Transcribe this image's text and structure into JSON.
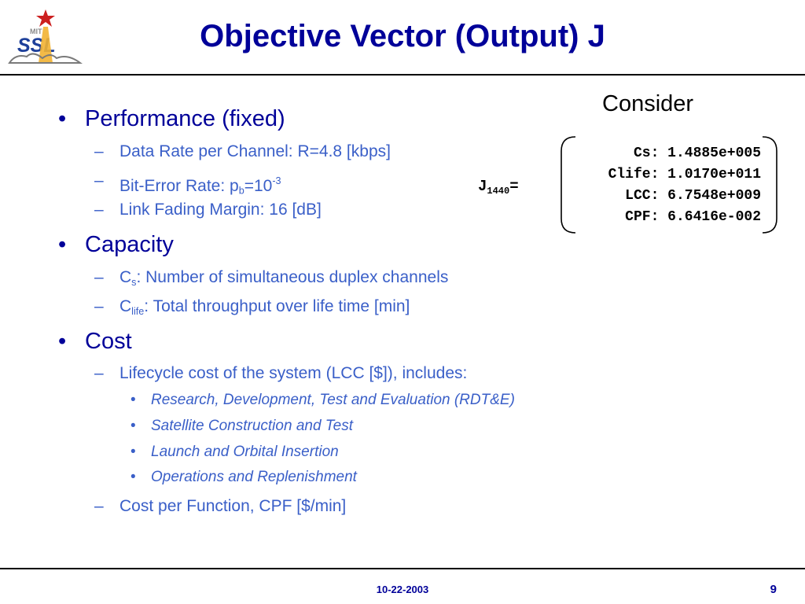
{
  "logo": {
    "text": "SSL",
    "small_text": "MIT"
  },
  "title": "Objective Vector (Output) J",
  "bullets": {
    "performance": {
      "label": "Performance (fixed)",
      "items": [
        {
          "prefix": "Data Rate per Channel: R=4.8 [kbps]"
        },
        {
          "prefix": "Bit-Error Rate: p",
          "sub": "b",
          "mid": "=10",
          "sup": "-3"
        },
        {
          "prefix": "Link Fading Margin:   16 [dB]"
        }
      ]
    },
    "capacity": {
      "label": "Capacity",
      "items": [
        {
          "prefix": "C",
          "sub": "s",
          "suffix": ": Number of simultaneous duplex channels"
        },
        {
          "prefix": "C",
          "sub": "life",
          "suffix": ": Total throughput over life time [min]"
        }
      ]
    },
    "cost": {
      "label": "Cost",
      "items": [
        {
          "text": "Lifecycle cost of the system (LCC [$]), includes:"
        },
        {
          "text": "Cost per Function, CPF [$/min]"
        }
      ],
      "subitems": [
        "Research, Development, Test and Evaluation (RDT&E)",
        "Satellite Construction and Test",
        "Launch and Orbital Insertion",
        "Operations and Replenishment"
      ]
    }
  },
  "vector": {
    "consider": "Consider",
    "j_main": "J",
    "j_sub": "1440",
    "j_eq": "=",
    "rows": [
      "Cs: 1.4885e+005",
      "Clife: 1.0170e+011",
      "LCC: 6.7548e+009",
      "CPF: 6.6416e-002"
    ]
  },
  "footer": {
    "date": "10-22-2003",
    "page": "9"
  },
  "colors": {
    "title": "#000099",
    "level1": "#000099",
    "level2": "#3a5fc8",
    "rule": "#000000"
  }
}
